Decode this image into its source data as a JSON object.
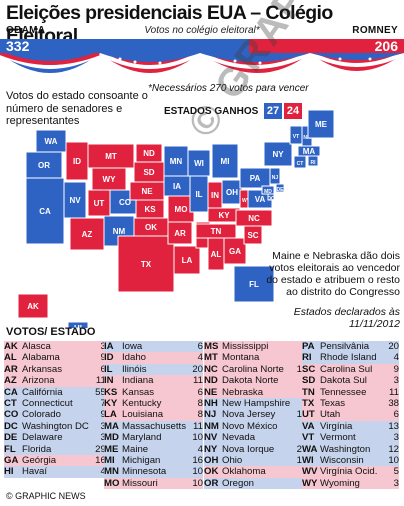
{
  "title": "Eleições presidenciais EUA – Colégio Eleitoral",
  "obama": {
    "name": "OBAMA",
    "votes": "332",
    "color": "#2e63c4"
  },
  "romney": {
    "name": "ROMNEY",
    "votes": "206",
    "color": "#e0223f"
  },
  "subtitle": "Votos no colégio eleitoral*",
  "needed": "*Necessários 270 votos para vencer",
  "map_note": "Votos do estado consoante o número de senadores e representantes",
  "states_won_label": "ESTADOS GANHOS",
  "states_won_obama": "27",
  "states_won_romney": "24",
  "maine_note": "Maine e Nebraska dão dois votos eleitorais ao vencedor do estado e atribuem o resto ao distrito do Congresso",
  "declared_note": "Estados declarados às 11/11/2012",
  "votes_header": "VOTOS/ ESTADO",
  "watermark": "© GRAPHIC NEWS",
  "footer": "© GRAPHIC NEWS",
  "chart_data": {
    "type": "table",
    "columns": [
      "abbr",
      "state",
      "votes",
      "winner"
    ],
    "rows": [
      [
        "AK",
        "Alasca",
        "3",
        "R"
      ],
      [
        "AL",
        "Alabama",
        "9",
        "R"
      ],
      [
        "AR",
        "Arkansas",
        "6",
        "R"
      ],
      [
        "AZ",
        "Arizona",
        "11",
        "R"
      ],
      [
        "CA",
        "Califórnia",
        "55",
        "D"
      ],
      [
        "CT",
        "Connecticut",
        "7",
        "D"
      ],
      [
        "CO",
        "Colorado",
        "9",
        "D"
      ],
      [
        "DC",
        "Washington DC",
        "3",
        "D"
      ],
      [
        "DE",
        "Delaware",
        "3",
        "D"
      ],
      [
        "FL",
        "Florida",
        "29",
        "D"
      ],
      [
        "GA",
        "Geórgia",
        "16",
        "R"
      ],
      [
        "HI",
        "Havaí",
        "4",
        "D"
      ],
      [
        "IA",
        "Iowa",
        "6",
        "D"
      ],
      [
        "ID",
        "Idaho",
        "4",
        "R"
      ],
      [
        "IL",
        "Ilinóis",
        "20",
        "D"
      ],
      [
        "IN",
        "Indiana",
        "11",
        "R"
      ],
      [
        "KS",
        "Kansas",
        "6",
        "R"
      ],
      [
        "KY",
        "Kentucky",
        "8",
        "R"
      ],
      [
        "LA",
        "Louisiana",
        "8",
        "R"
      ],
      [
        "MA",
        "Massachusetts",
        "11",
        "D"
      ],
      [
        "MD",
        "Maryland",
        "10",
        "D"
      ],
      [
        "ME",
        "Maine",
        "4",
        "D"
      ],
      [
        "MI",
        "Michigan",
        "16",
        "D"
      ],
      [
        "MN",
        "Minnesota",
        "10",
        "D"
      ],
      [
        "MO",
        "Missouri",
        "10",
        "R"
      ],
      [
        "MS",
        "Mississippi",
        "6",
        "R"
      ],
      [
        "MT",
        "Montana",
        "3",
        "R"
      ],
      [
        "NC",
        "Carolina Norte",
        "15",
        "R"
      ],
      [
        "ND",
        "Dakota Norte",
        "3",
        "R"
      ],
      [
        "NE",
        "Nebraska",
        "5",
        "R"
      ],
      [
        "NH",
        "New Hampshire",
        "4",
        "D"
      ],
      [
        "NJ",
        "Nova Jersey",
        "14",
        "D"
      ],
      [
        "NM",
        "Novo México",
        "5",
        "D"
      ],
      [
        "NV",
        "Nevada",
        "6",
        "D"
      ],
      [
        "NY",
        "Nova Iorque",
        "29",
        "D"
      ],
      [
        "OH",
        "Ohio",
        "18",
        "D"
      ],
      [
        "OK",
        "Oklahoma",
        "7",
        "R"
      ],
      [
        "OR",
        "Oregon",
        "7",
        "D"
      ],
      [
        "PA",
        "Pensilvânia",
        "20",
        "D"
      ],
      [
        "RI",
        "Rhode Island",
        "4",
        "D"
      ],
      [
        "SC",
        "Carolina Sul",
        "9",
        "R"
      ],
      [
        "SD",
        "Dakota Sul",
        "3",
        "R"
      ],
      [
        "TN",
        "Tennessee",
        "11",
        "R"
      ],
      [
        "TX",
        "Texas",
        "38",
        "R"
      ],
      [
        "UT",
        "Utah",
        "6",
        "R"
      ],
      [
        "VA",
        "Virgínia",
        "13",
        "D"
      ],
      [
        "VT",
        "Vermont",
        "3",
        "D"
      ],
      [
        "WA",
        "Washington",
        "12",
        "D"
      ],
      [
        "WI",
        "Wisconsin",
        "10",
        "D"
      ],
      [
        "WV",
        "Virgínia Ocid.",
        "5",
        "R"
      ],
      [
        "WY",
        "Wyoming",
        "3",
        "R"
      ]
    ]
  }
}
